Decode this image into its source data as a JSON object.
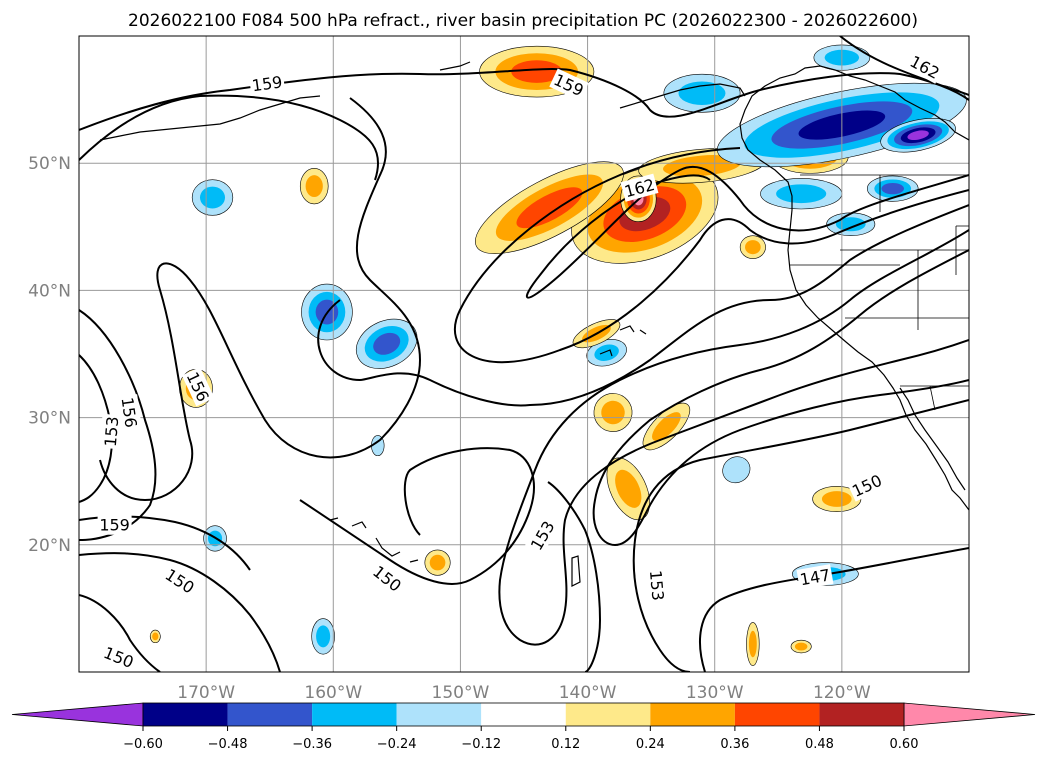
{
  "chart_data": {
    "type": "map-contour",
    "title": "2026022100 F084 500 hPa refract., river basin precipitation PC (2026022300 - 2026022600)",
    "lon_range": [
      -180,
      -110
    ],
    "lat_range": [
      10,
      60
    ],
    "lon_ticks": [
      {
        "value": -170,
        "label": "170°W"
      },
      {
        "value": -160,
        "label": "160°W"
      },
      {
        "value": -150,
        "label": "150°W"
      },
      {
        "value": -140,
        "label": "140°W"
      },
      {
        "value": -130,
        "label": "130°W"
      },
      {
        "value": -120,
        "label": "120°W"
      }
    ],
    "lat_ticks": [
      {
        "value": 20,
        "label": "20°N"
      },
      {
        "value": 30,
        "label": "30°N"
      },
      {
        "value": 40,
        "label": "40°N"
      },
      {
        "value": 50,
        "label": "50°N"
      }
    ],
    "grid": true,
    "contour_field": "500 hPa refractivity",
    "contour_levels": [
      147,
      150,
      153,
      156,
      159,
      162
    ],
    "contour_labels": [
      {
        "text": "159",
        "lon": -165.2,
        "lat": 56.2,
        "angle": -8
      },
      {
        "text": "159",
        "lon": -141.5,
        "lat": 56.1,
        "angle": 25
      },
      {
        "text": "162",
        "lon": -113.5,
        "lat": 57.5,
        "angle": 28
      },
      {
        "text": "162",
        "lon": -135.9,
        "lat": 48.0,
        "angle": -15
      },
      {
        "text": "156",
        "lon": -170.7,
        "lat": 32.4,
        "angle": 65
      },
      {
        "text": "156",
        "lon": -176.1,
        "lat": 30.4,
        "angle": 82
      },
      {
        "text": "153",
        "lon": -177.4,
        "lat": 28.9,
        "angle": -85
      },
      {
        "text": "159",
        "lon": -177.2,
        "lat": 21.5,
        "angle": 0
      },
      {
        "text": "150",
        "lon": -172.1,
        "lat": 17.1,
        "angle": 33
      },
      {
        "text": "150",
        "lon": -176.9,
        "lat": 11.1,
        "angle": 22
      },
      {
        "text": "150",
        "lon": -155.8,
        "lat": 17.3,
        "angle": 38
      },
      {
        "text": "153",
        "lon": -143.5,
        "lat": 20.7,
        "angle": -60
      },
      {
        "text": "153",
        "lon": -134.6,
        "lat": 16.8,
        "angle": 85
      },
      {
        "text": "150",
        "lon": -118.0,
        "lat": 24.6,
        "angle": -25
      },
      {
        "text": "147",
        "lon": -122.1,
        "lat": 17.4,
        "angle": -10
      }
    ],
    "fill_field": "river basin precipitation PC",
    "colorbar": {
      "colors": [
        "#9933dd",
        "#000088",
        "#3355cc",
        "#00bbf7",
        "#aee2fb",
        "#ffffff",
        "#fee98a",
        "#ffa500",
        "#ff4500",
        "#b22222",
        "#ff88aa"
      ],
      "ticks": [
        "−0.60",
        "−0.48",
        "−0.36",
        "−0.24",
        "−0.12",
        "0.12",
        "0.24",
        "0.36",
        "0.48",
        "0.60"
      ],
      "extend": "both"
    },
    "anomalies": [
      {
        "lon": -135.5,
        "lat": 46.0,
        "rlon": 6.0,
        "rlat": 3.5,
        "value": 0.52,
        "rot": -20
      },
      {
        "lon": -136.0,
        "lat": 47.2,
        "rlon": 1.4,
        "rlat": 1.8,
        "value": 0.62,
        "rot": 0
      },
      {
        "lon": -143.0,
        "lat": 46.5,
        "rlon": 6.5,
        "rlat": 2.2,
        "value": 0.38,
        "rot": -28
      },
      {
        "lon": -131.0,
        "lat": 49.8,
        "rlon": 5.0,
        "rlat": 1.3,
        "value": 0.3,
        "rot": -5
      },
      {
        "lon": -122.5,
        "lat": 50.5,
        "rlon": 3.0,
        "rlat": 1.3,
        "value": 0.4,
        "rot": 0
      },
      {
        "lon": -144.0,
        "lat": 57.2,
        "rlon": 4.5,
        "rlat": 2.0,
        "value": 0.4,
        "rot": 0
      },
      {
        "lon": -120.0,
        "lat": 53.0,
        "rlon": 10.0,
        "rlat": 2.6,
        "value": -0.5,
        "rot": -12
      },
      {
        "lon": -114.0,
        "lat": 52.2,
        "rlon": 3.0,
        "rlat": 1.2,
        "value": -0.62,
        "rot": -12
      },
      {
        "lon": -131.0,
        "lat": 55.5,
        "rlon": 3.0,
        "rlat": 1.5,
        "value": -0.3,
        "rot": 0
      },
      {
        "lon": -120.0,
        "lat": 58.3,
        "rlon": 2.2,
        "rlat": 1.0,
        "value": -0.3,
        "rot": 0
      },
      {
        "lon": -169.5,
        "lat": 47.3,
        "rlon": 1.6,
        "rlat": 1.4,
        "value": -0.3,
        "rot": 0
      },
      {
        "lon": -161.5,
        "lat": 48.2,
        "rlon": 1.1,
        "rlat": 1.4,
        "value": 0.3,
        "rot": 0
      },
      {
        "lon": -160.5,
        "lat": 38.3,
        "rlon": 2.0,
        "rlat": 2.2,
        "value": -0.4,
        "rot": 0
      },
      {
        "lon": -155.8,
        "lat": 35.8,
        "rlon": 2.5,
        "rlat": 1.8,
        "value": -0.4,
        "rot": -25
      },
      {
        "lon": -170.8,
        "lat": 32.3,
        "rlon": 1.3,
        "rlat": 1.5,
        "value": 0.3,
        "rot": 0
      },
      {
        "lon": -138.5,
        "lat": 35.1,
        "rlon": 1.6,
        "rlat": 1.0,
        "value": -0.28,
        "rot": -15
      },
      {
        "lon": -139.3,
        "lat": 36.6,
        "rlon": 2.0,
        "rlat": 0.8,
        "value": 0.3,
        "rot": -25
      },
      {
        "lon": -138.0,
        "lat": 30.4,
        "rlon": 1.5,
        "rlat": 1.5,
        "value": 0.3,
        "rot": -40
      },
      {
        "lon": -133.8,
        "lat": 29.3,
        "rlon": 2.4,
        "rlat": 1.0,
        "value": 0.3,
        "rot": -45
      },
      {
        "lon": -136.8,
        "lat": 24.4,
        "rlon": 1.4,
        "rlat": 2.6,
        "value": 0.34,
        "rot": -25
      },
      {
        "lon": -120.4,
        "lat": 23.6,
        "rlon": 1.9,
        "rlat": 1.0,
        "value": 0.3,
        "rot": 0
      },
      {
        "lon": -121.3,
        "lat": 17.7,
        "rlon": 2.6,
        "rlat": 0.9,
        "value": -0.28,
        "rot": 0
      },
      {
        "lon": -151.8,
        "lat": 18.6,
        "rlon": 1.0,
        "rlat": 1.0,
        "value": 0.34,
        "rot": 0
      },
      {
        "lon": -169.3,
        "lat": 20.5,
        "rlon": 0.9,
        "rlat": 1.0,
        "value": -0.28,
        "rot": 0
      },
      {
        "lon": -160.8,
        "lat": 12.8,
        "rlon": 0.9,
        "rlat": 1.4,
        "value": -0.28,
        "rot": 0
      },
      {
        "lon": -119.3,
        "lat": 45.2,
        "rlon": 1.9,
        "rlat": 0.9,
        "value": -0.3,
        "rot": 0
      },
      {
        "lon": -127.0,
        "lat": 43.4,
        "rlon": 1.0,
        "rlat": 0.9,
        "value": 0.34,
        "rot": 0
      },
      {
        "lon": -116.0,
        "lat": 48.0,
        "rlon": 2.0,
        "rlat": 1.0,
        "value": -0.4,
        "rot": 0
      },
      {
        "lon": -123.2,
        "lat": 47.6,
        "rlon": 3.2,
        "rlat": 1.2,
        "value": -0.28,
        "rot": 0
      },
      {
        "lon": -128.3,
        "lat": 25.9,
        "rlon": 1.1,
        "rlat": 1.0,
        "value": -0.2,
        "rot": -30
      },
      {
        "lon": -127.0,
        "lat": 12.2,
        "rlon": 0.5,
        "rlat": 1.7,
        "value": 0.3,
        "rot": 0
      },
      {
        "lon": -123.2,
        "lat": 12.0,
        "rlon": 0.8,
        "rlat": 0.5,
        "value": 0.3,
        "rot": 0
      },
      {
        "lon": -174.0,
        "lat": 12.8,
        "rlon": 0.4,
        "rlat": 0.5,
        "value": 0.3,
        "rot": 0
      },
      {
        "lon": -156.5,
        "lat": 27.8,
        "rlon": 0.5,
        "rlat": 0.8,
        "value": -0.2,
        "rot": 0
      }
    ]
  }
}
